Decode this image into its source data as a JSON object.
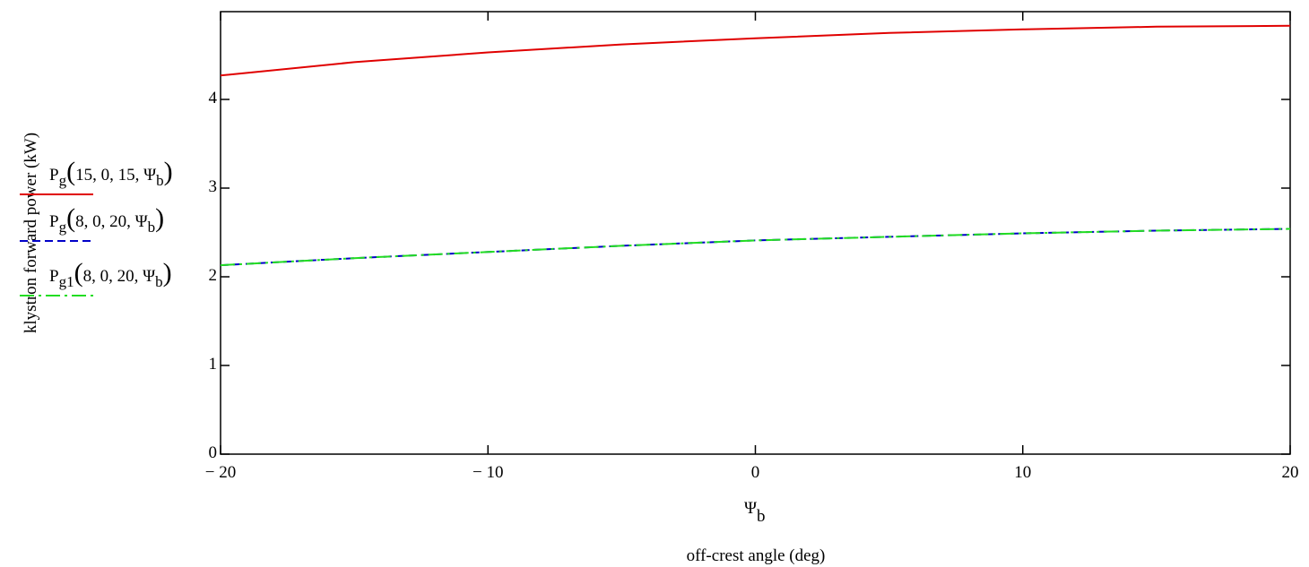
{
  "chart_data": {
    "type": "line",
    "title": "",
    "xlabel_symbol": "Ψ",
    "xlabel_symbol_sub": "b",
    "xlabel": "off-crest angle (deg)",
    "ylabel": "klystron forward power (kW)",
    "xlim": [
      -20,
      20
    ],
    "ylim": [
      0,
      5
    ],
    "x_ticks": [
      -20,
      -10,
      0,
      10,
      20
    ],
    "x_tick_labels": [
      "− 20",
      "− 10",
      "0",
      "10",
      "20"
    ],
    "y_ticks": [
      0,
      1,
      2,
      3,
      4
    ],
    "y_tick_labels": [
      "0",
      "1",
      "2",
      "3",
      "4"
    ],
    "grid": false,
    "legend_position": "left",
    "series": [
      {
        "name": "Pg(15, 0, 15, Ψb)",
        "legend": {
          "main": "P",
          "sub": "g",
          "args": "15, 0, 15, Ψ",
          "argsub": "b"
        },
        "color": "#e00000",
        "style": "solid",
        "x": [
          -20,
          -15,
          -10,
          -5,
          0,
          5,
          10,
          15,
          20
        ],
        "y": [
          4.27,
          4.42,
          4.53,
          4.62,
          4.69,
          4.75,
          4.79,
          4.82,
          4.83
        ]
      },
      {
        "name": "Pg(8, 0, 20, Ψb)",
        "legend": {
          "main": "P",
          "sub": "g",
          "args": "8, 0, 20, Ψ",
          "argsub": "b"
        },
        "color": "#0000c8",
        "style": "dashed",
        "x": [
          -20,
          -15,
          -10,
          -5,
          0,
          5,
          10,
          15,
          20
        ],
        "y": [
          2.13,
          2.21,
          2.28,
          2.35,
          2.41,
          2.45,
          2.49,
          2.52,
          2.54
        ]
      },
      {
        "name": "Pg1(8, 0, 20, Ψb)",
        "legend": {
          "main": "P",
          "sub": "g1",
          "args": "8, 0, 20, Ψ",
          "argsub": "b"
        },
        "color": "#22dd22",
        "style": "dashdot",
        "x": [
          -20,
          -15,
          -10,
          -5,
          0,
          5,
          10,
          15,
          20
        ],
        "y": [
          2.13,
          2.21,
          2.28,
          2.35,
          2.41,
          2.45,
          2.49,
          2.52,
          2.54
        ]
      }
    ]
  }
}
